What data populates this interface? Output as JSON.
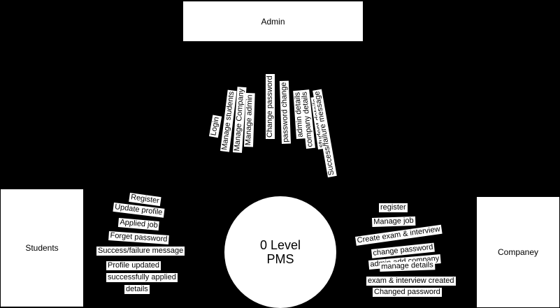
{
  "entities": {
    "admin": "Admin",
    "students": "Students",
    "company": "Companey"
  },
  "process": {
    "line1": "0 Level",
    "line2": "PMS"
  },
  "admin_flows": [
    "Login",
    "Manage students",
    "Manage Company",
    "Manage admin",
    "Change password",
    "password change",
    "admin details",
    "company details",
    "student details",
    "Success/failure message"
  ],
  "student_flows": [
    "Register",
    "Update profile",
    "Applied job",
    "Forget password",
    "Success/failure message",
    "Profile updated",
    "successfully applied",
    "details"
  ],
  "company_flows": [
    "register",
    "Manage job",
    "Create exam & interview",
    "change password",
    "admin add company",
    "manage details",
    "exam & interview created",
    "Changed password"
  ]
}
